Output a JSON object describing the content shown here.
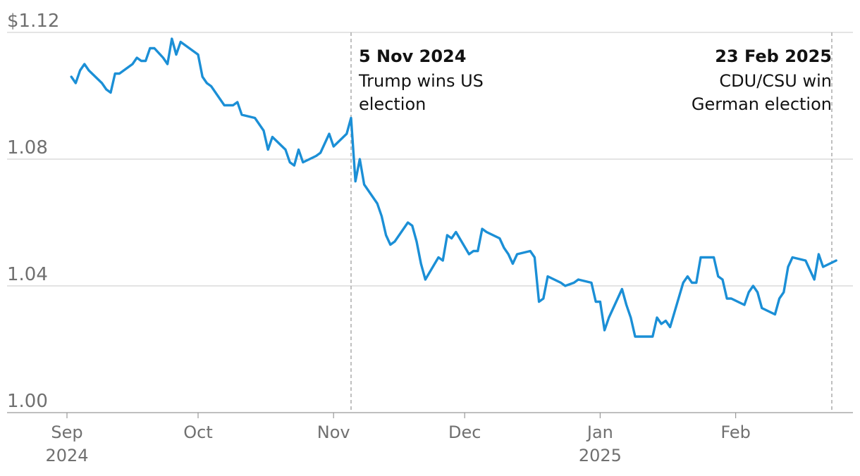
{
  "chart_data": {
    "type": "line",
    "title": "",
    "xlabel": "",
    "ylabel": "",
    "ylim": [
      1.0,
      1.12
    ],
    "xlim": [
      "2024-09-01",
      "2025-02-28"
    ],
    "grid": "horizontal",
    "y_ticks": [
      {
        "value": 1.12,
        "label": "$1.12"
      },
      {
        "value": 1.08,
        "label": "1.08"
      },
      {
        "value": 1.04,
        "label": "1.04"
      },
      {
        "value": 1.0,
        "label": "1.00"
      }
    ],
    "x_ticks": [
      {
        "date": "2024-09-01",
        "label": "Sep",
        "sublabel": "2024"
      },
      {
        "date": "2024-10-01",
        "label": "Oct",
        "sublabel": ""
      },
      {
        "date": "2024-11-01",
        "label": "Nov",
        "sublabel": ""
      },
      {
        "date": "2024-12-01",
        "label": "Dec",
        "sublabel": ""
      },
      {
        "date": "2025-01-01",
        "label": "Jan",
        "sublabel": "2025"
      },
      {
        "date": "2025-02-01",
        "label": "Feb",
        "sublabel": ""
      }
    ],
    "annotations": [
      {
        "date": "2024-11-05",
        "title": "5 Nov 2024",
        "lines": [
          "Trump wins US",
          "election"
        ],
        "align": "start"
      },
      {
        "date": "2025-02-23",
        "title": "23 Feb 2025",
        "lines": [
          "CDU/CSU win",
          "German election"
        ],
        "align": "end"
      }
    ],
    "series": [
      {
        "color": "#1b8fd6",
        "points": [
          [
            "2024-09-02",
            1.106
          ],
          [
            "2024-09-03",
            1.104
          ],
          [
            "2024-09-04",
            1.108
          ],
          [
            "2024-09-05",
            1.11
          ],
          [
            "2024-09-06",
            1.108
          ],
          [
            "2024-09-09",
            1.104
          ],
          [
            "2024-09-10",
            1.102
          ],
          [
            "2024-09-11",
            1.101
          ],
          [
            "2024-09-12",
            1.107
          ],
          [
            "2024-09-13",
            1.107
          ],
          [
            "2024-09-16",
            1.11
          ],
          [
            "2024-09-17",
            1.112
          ],
          [
            "2024-09-18",
            1.111
          ],
          [
            "2024-09-19",
            1.111
          ],
          [
            "2024-09-20",
            1.115
          ],
          [
            "2024-09-21",
            1.115
          ],
          [
            "2024-09-23",
            1.112
          ],
          [
            "2024-09-24",
            1.11
          ],
          [
            "2024-09-25",
            1.118
          ],
          [
            "2024-09-26",
            1.113
          ],
          [
            "2024-09-27",
            1.117
          ],
          [
            "2024-09-30",
            1.114
          ],
          [
            "2024-10-01",
            1.113
          ],
          [
            "2024-10-02",
            1.106
          ],
          [
            "2024-10-03",
            1.104
          ],
          [
            "2024-10-04",
            1.103
          ],
          [
            "2024-10-07",
            1.097
          ],
          [
            "2024-10-08",
            1.097
          ],
          [
            "2024-10-09",
            1.097
          ],
          [
            "2024-10-10",
            1.098
          ],
          [
            "2024-10-11",
            1.094
          ],
          [
            "2024-10-14",
            1.093
          ],
          [
            "2024-10-15",
            1.091
          ],
          [
            "2024-10-16",
            1.089
          ],
          [
            "2024-10-17",
            1.083
          ],
          [
            "2024-10-18",
            1.087
          ],
          [
            "2024-10-21",
            1.083
          ],
          [
            "2024-10-22",
            1.079
          ],
          [
            "2024-10-23",
            1.078
          ],
          [
            "2024-10-24",
            1.083
          ],
          [
            "2024-10-25",
            1.079
          ],
          [
            "2024-10-28",
            1.081
          ],
          [
            "2024-10-29",
            1.082
          ],
          [
            "2024-10-30",
            1.085
          ],
          [
            "2024-10-31",
            1.088
          ],
          [
            "2024-11-01",
            1.084
          ],
          [
            "2024-11-04",
            1.088
          ],
          [
            "2024-11-05",
            1.093
          ],
          [
            "2024-11-06",
            1.073
          ],
          [
            "2024-11-07",
            1.08
          ],
          [
            "2024-11-08",
            1.072
          ],
          [
            "2024-11-11",
            1.066
          ],
          [
            "2024-11-12",
            1.062
          ],
          [
            "2024-11-13",
            1.056
          ],
          [
            "2024-11-14",
            1.053
          ],
          [
            "2024-11-15",
            1.054
          ],
          [
            "2024-11-18",
            1.06
          ],
          [
            "2024-11-19",
            1.059
          ],
          [
            "2024-11-20",
            1.054
          ],
          [
            "2024-11-21",
            1.047
          ],
          [
            "2024-11-22",
            1.042
          ],
          [
            "2024-11-25",
            1.049
          ],
          [
            "2024-11-26",
            1.048
          ],
          [
            "2024-11-27",
            1.056
          ],
          [
            "2024-11-28",
            1.055
          ],
          [
            "2024-11-29",
            1.057
          ],
          [
            "2024-12-02",
            1.05
          ],
          [
            "2024-12-03",
            1.051
          ],
          [
            "2024-12-04",
            1.051
          ],
          [
            "2024-12-05",
            1.058
          ],
          [
            "2024-12-06",
            1.057
          ],
          [
            "2024-12-09",
            1.055
          ],
          [
            "2024-12-10",
            1.052
          ],
          [
            "2024-12-11",
            1.05
          ],
          [
            "2024-12-12",
            1.047
          ],
          [
            "2024-12-13",
            1.05
          ],
          [
            "2024-12-16",
            1.051
          ],
          [
            "2024-12-17",
            1.049
          ],
          [
            "2024-12-18",
            1.035
          ],
          [
            "2024-12-19",
            1.036
          ],
          [
            "2024-12-20",
            1.043
          ],
          [
            "2024-12-23",
            1.041
          ],
          [
            "2024-12-24",
            1.04
          ],
          [
            "2024-12-26",
            1.041
          ],
          [
            "2024-12-27",
            1.042
          ],
          [
            "2024-12-30",
            1.041
          ],
          [
            "2024-12-31",
            1.035
          ],
          [
            "2025-01-01",
            1.035
          ],
          [
            "2025-01-02",
            1.026
          ],
          [
            "2025-01-03",
            1.03
          ],
          [
            "2025-01-06",
            1.039
          ],
          [
            "2025-01-07",
            1.034
          ],
          [
            "2025-01-08",
            1.03
          ],
          [
            "2025-01-09",
            1.024
          ],
          [
            "2025-01-10",
            1.024
          ],
          [
            "2025-01-13",
            1.024
          ],
          [
            "2025-01-14",
            1.03
          ],
          [
            "2025-01-15",
            1.028
          ],
          [
            "2025-01-16",
            1.029
          ],
          [
            "2025-01-17",
            1.027
          ],
          [
            "2025-01-20",
            1.041
          ],
          [
            "2025-01-21",
            1.043
          ],
          [
            "2025-01-22",
            1.041
          ],
          [
            "2025-01-23",
            1.041
          ],
          [
            "2025-01-24",
            1.049
          ],
          [
            "2025-01-27",
            1.049
          ],
          [
            "2025-01-28",
            1.043
          ],
          [
            "2025-01-29",
            1.042
          ],
          [
            "2025-01-30",
            1.036
          ],
          [
            "2025-01-31",
            1.036
          ],
          [
            "2025-02-03",
            1.034
          ],
          [
            "2025-02-04",
            1.038
          ],
          [
            "2025-02-05",
            1.04
          ],
          [
            "2025-02-06",
            1.038
          ],
          [
            "2025-02-07",
            1.033
          ],
          [
            "2025-02-10",
            1.031
          ],
          [
            "2025-02-11",
            1.036
          ],
          [
            "2025-02-12",
            1.038
          ],
          [
            "2025-02-13",
            1.046
          ],
          [
            "2025-02-14",
            1.049
          ],
          [
            "2025-02-17",
            1.048
          ],
          [
            "2025-02-18",
            1.045
          ],
          [
            "2025-02-19",
            1.042
          ],
          [
            "2025-02-20",
            1.05
          ],
          [
            "2025-02-21",
            1.046
          ],
          [
            "2025-02-24",
            1.048
          ]
        ]
      }
    ]
  }
}
